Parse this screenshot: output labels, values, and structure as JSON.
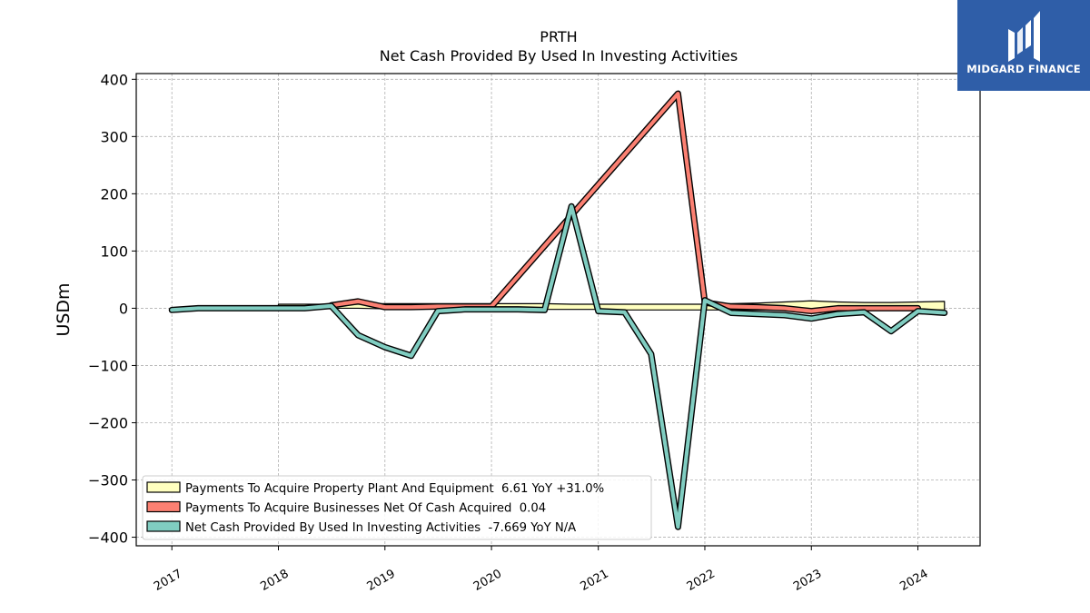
{
  "chart_data": {
    "type": "line",
    "title": "PRTH",
    "subtitle": "Net Cash Provided By Used In Investing Activities",
    "xlabel": "",
    "ylabel": "USDm",
    "ylim": [
      -415,
      410
    ],
    "xlim": [
      "2016-09-01",
      "2024-08-01"
    ],
    "yticks": [
      400,
      300,
      200,
      100,
      0,
      -100,
      -200,
      -300,
      -400
    ],
    "ytick_labels": [
      "400",
      "300",
      "200",
      "100",
      "0",
      "−100",
      "−200",
      "−300",
      "−400"
    ],
    "xticks": [
      "2017-01-01",
      "2018-01-01",
      "2019-01-01",
      "2020-01-01",
      "2021-01-01",
      "2022-01-01",
      "2023-01-01",
      "2024-01-01"
    ],
    "xtick_labels": [
      "2017",
      "2018",
      "2019",
      "2020",
      "2021",
      "2022",
      "2023",
      "2024"
    ],
    "grid": true,
    "legend_position": "lower-left",
    "series": [
      {
        "name": "Payments To Acquire Property Plant And Equipment  6.61 YoY +31.0%",
        "color": "#ffffbf",
        "style": "band",
        "x": [
          "2018-01-01",
          "2018-07-01",
          "2018-10-01",
          "2019-01-01",
          "2019-04-01",
          "2019-07-01",
          "2019-10-01",
          "2020-01-01",
          "2020-04-01",
          "2020-07-01",
          "2020-10-01",
          "2021-01-01",
          "2021-04-01",
          "2021-07-01",
          "2021-10-01",
          "2022-01-01",
          "2022-04-01",
          "2022-07-01",
          "2022-10-01",
          "2023-01-01",
          "2023-04-01",
          "2023-07-01",
          "2023-10-01",
          "2024-01-01",
          "2024-04-01"
        ],
        "values": [
          7,
          7,
          7,
          8,
          8,
          8,
          8,
          8,
          8,
          8,
          7,
          7,
          7,
          7,
          7,
          7,
          8,
          9,
          11,
          13,
          11,
          10,
          10,
          11,
          12
        ],
        "values_low": [
          0,
          0,
          0,
          -1,
          -1,
          -1,
          -1,
          -2,
          -2,
          -2,
          -2,
          -2,
          -3,
          -3,
          -3,
          -3,
          -3,
          -3,
          -3,
          -3,
          -3,
          -3,
          -3,
          -3,
          -3
        ]
      },
      {
        "name": "Payments To Acquire Businesses Net Of Cash Acquired  0.04",
        "color": "#fb8072",
        "style": "line",
        "x": [
          "2018-07-01",
          "2018-10-01",
          "2019-01-01",
          "2019-04-01",
          "2019-07-01",
          "2019-10-01",
          "2020-01-01",
          "2021-10-01",
          "2022-01-01",
          "2022-04-01",
          "2022-07-01",
          "2022-10-01",
          "2023-01-01",
          "2023-04-01",
          "2023-07-01",
          "2023-10-01",
          "2024-01-01"
        ],
        "values": [
          5,
          12,
          2,
          2,
          3,
          3,
          3,
          375,
          10,
          3,
          2,
          0,
          -5,
          0,
          0,
          0,
          0
        ]
      },
      {
        "name": "Net Cash Provided By Used In Investing Activities  -7.669 YoY N/A",
        "color": "#80cdc1",
        "style": "line",
        "x": [
          "2017-01-01",
          "2017-04-01",
          "2017-07-01",
          "2017-10-01",
          "2018-01-01",
          "2018-04-01",
          "2018-07-01",
          "2018-10-01",
          "2019-01-01",
          "2019-04-01",
          "2019-07-01",
          "2019-10-01",
          "2020-01-01",
          "2020-04-01",
          "2020-07-01",
          "2020-10-01",
          "2021-01-01",
          "2021-04-01",
          "2021-07-01",
          "2021-10-01",
          "2022-01-01",
          "2022-04-01",
          "2022-07-01",
          "2022-10-01",
          "2023-01-01",
          "2023-04-01",
          "2023-07-01",
          "2023-10-01",
          "2024-01-01",
          "2024-04-01"
        ],
        "values": [
          -3,
          0,
          0,
          0,
          0,
          0,
          4,
          -47,
          -68,
          -83,
          -5,
          -2,
          -2,
          -2,
          -3,
          178,
          -5,
          -7,
          -80,
          -382,
          14,
          -8,
          -10,
          -12,
          -18,
          -10,
          -7,
          -40,
          -5,
          -8
        ]
      }
    ]
  },
  "logo": {
    "text": "MIDGARD FINANCE"
  }
}
